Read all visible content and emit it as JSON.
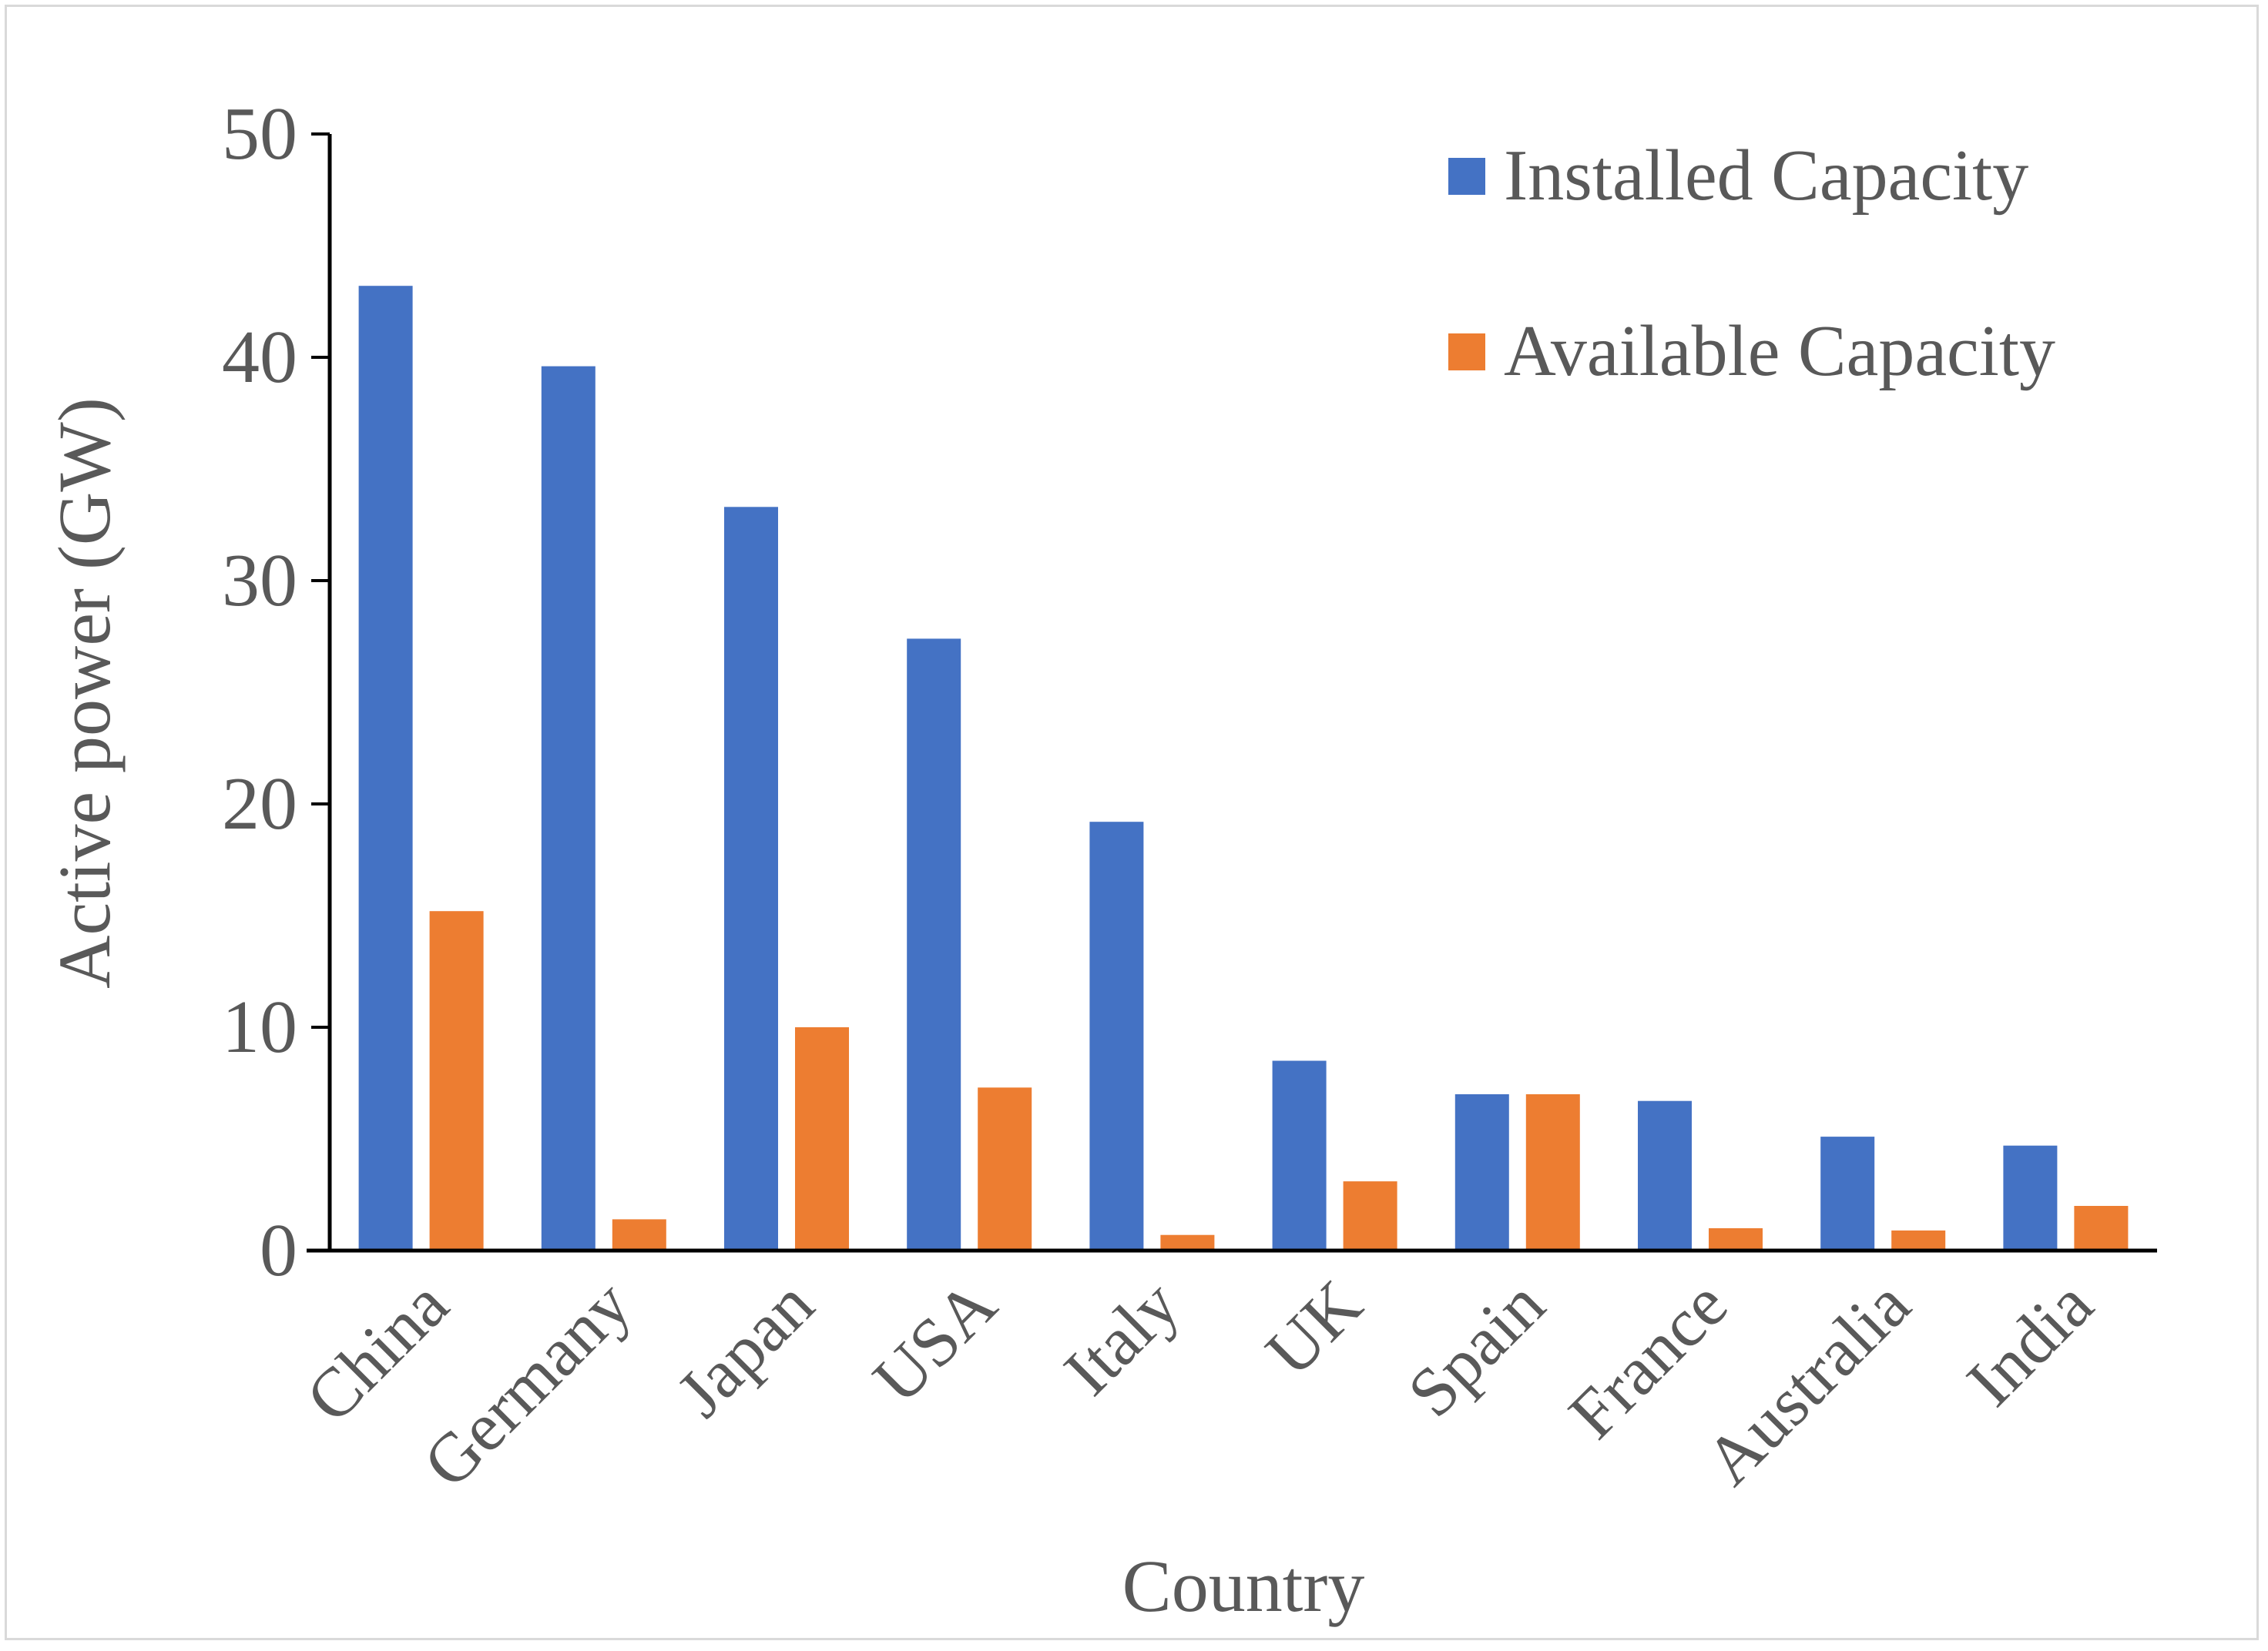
{
  "chart_data": {
    "type": "bar",
    "title": "",
    "xlabel": "Country",
    "ylabel": "Active power (GW)",
    "ylim": [
      0,
      50
    ],
    "yticks": [
      0,
      10,
      20,
      30,
      40,
      50
    ],
    "grid": false,
    "legend_position": "top-right",
    "categories": [
      "China",
      "Germany",
      "Japan",
      "USA",
      "Italy",
      "UK",
      "Spain",
      "France",
      "Australia",
      "India"
    ],
    "series": [
      {
        "name": "Installed Capacity",
        "color": "#4472c4",
        "values": [
          43.2,
          39.6,
          33.3,
          27.4,
          19.2,
          8.5,
          7.0,
          6.7,
          5.1,
          4.7
        ]
      },
      {
        "name": "Available Capacity",
        "color": "#ed7d31",
        "values": [
          15.2,
          1.4,
          10.0,
          7.3,
          0.7,
          3.1,
          7.0,
          1.0,
          0.9,
          2.0
        ]
      }
    ]
  }
}
